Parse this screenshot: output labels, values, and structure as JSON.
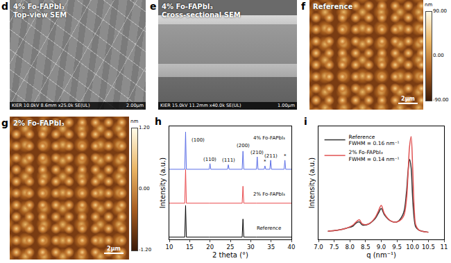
{
  "panels": [
    {
      "letter": "d",
      "type": "sem_top",
      "texts": [
        "4% Fo-FAPbI₃",
        "Top-view SEM"
      ],
      "footer": "KIER 10.0kV 8.6mm x25.0k SE(UL)",
      "scale": "2.00μm"
    },
    {
      "letter": "e",
      "type": "sem_cross",
      "texts": [
        "4% Fo-FAPbI₃",
        "Cross-sectional SEM"
      ],
      "footer": "KIER 15.0kV 11.2mm x40.0k SE(UL)",
      "scale": "1.00μm"
    },
    {
      "letter": "f",
      "type": "afm",
      "texts": [
        "Reference"
      ],
      "scale": "2μm",
      "colorbar": {
        "title": "nm",
        "range": [
          -90,
          90
        ],
        "ticks": [
          {
            "value": 90,
            "label": "90.00"
          },
          {
            "value": 0,
            "label": "0.00"
          },
          {
            "value": -90,
            "label": "-90.00"
          }
        ]
      }
    },
    {
      "letter": "g",
      "type": "afm",
      "texts": [
        "2% Fo-FAPbI₃"
      ],
      "scale": "2μm",
      "colorbar": {
        "title": "nm",
        "range": [
          -1.2,
          1.2
        ],
        "ticks": [
          {
            "value": 1.2,
            "label": "1.20"
          },
          {
            "value": 0,
            "label": "0.00"
          },
          {
            "value": -1.2,
            "label": "-1.20"
          }
        ]
      }
    }
  ],
  "chart_data": [
    {
      "letter": "h",
      "type": "line",
      "line_style": "solid",
      "x_label": "2 theta (°)",
      "y_label": "Intensity (a.u.)",
      "xlim": [
        10,
        40
      ],
      "xticks": [
        10,
        15,
        20,
        25,
        30,
        35,
        40
      ],
      "ylim": [
        0,
        100
      ],
      "tick_labels": "x",
      "grid": false,
      "x": [
        10,
        13.8,
        14.0,
        14.2,
        19.8,
        20.0,
        20.2,
        24.3,
        24.5,
        24.7,
        27.9,
        28.1,
        28.3,
        31.4,
        31.6,
        31.8,
        33.3,
        33.5,
        33.7,
        34.7,
        34.9,
        35.1,
        38.2,
        38.4,
        38.6,
        40
      ],
      "series": [
        {
          "name": "Reference",
          "color": "#000000",
          "values": [
            2,
            2,
            30,
            2,
            2,
            2,
            2,
            2,
            2,
            2,
            2,
            18,
            2,
            2,
            2,
            2,
            2,
            2,
            2,
            2,
            2,
            2,
            2,
            2,
            2,
            2
          ]
        },
        {
          "name": "2% Fo-FAPbI₃",
          "color": "#e8474a",
          "values": [
            32,
            32,
            62,
            32,
            32,
            32,
            32,
            32,
            32,
            32,
            32,
            47,
            32,
            32,
            32,
            32,
            32,
            32,
            32,
            32,
            32,
            32,
            32,
            32,
            32,
            32
          ]
        },
        {
          "name": "4% Fo-FAPbI₃",
          "color": "#5a6de6",
          "values": [
            62,
            62,
            95,
            62,
            62,
            67,
            62,
            62,
            66,
            62,
            62,
            78,
            62,
            62,
            73,
            62,
            62,
            65,
            62,
            62,
            70,
            62,
            62,
            70,
            62,
            62
          ]
        }
      ],
      "annotations": [
        {
          "text": "(100)",
          "x": 17,
          "y": 84
        },
        {
          "text": "(110)",
          "x": 20,
          "y": 67
        },
        {
          "text": "(111)",
          "x": 24.5,
          "y": 66
        },
        {
          "text": "(200)",
          "x": 28.1,
          "y": 79
        },
        {
          "text": "(210)",
          "x": 31.6,
          "y": 73
        },
        {
          "text": "*",
          "x": 33.5,
          "y": 65
        },
        {
          "text": "(211)",
          "x": 34.9,
          "y": 70
        },
        {
          "text": "*",
          "x": 38.4,
          "y": 70
        },
        {
          "text": "4% Fo-FAPbI₃",
          "x": 34.5,
          "y": 86
        },
        {
          "text": "2% Fo-FAPbI₃",
          "x": 34.5,
          "y": 36
        },
        {
          "text": "Reference",
          "x": 34.5,
          "y": 6
        }
      ]
    },
    {
      "letter": "i",
      "type": "line",
      "line_style": "smooth",
      "x_label": "q (nm⁻¹)",
      "y_label": "Intensity (a.u.)",
      "xlim": [
        7,
        11
      ],
      "xticks": [
        {
          "value": 7,
          "label": "7.0"
        },
        {
          "value": 7.5,
          "label": "7.5"
        },
        {
          "value": 8,
          "label": "8.0"
        },
        {
          "value": 8.5,
          "label": "8.5"
        },
        {
          "value": 9,
          "label": "9.0"
        },
        {
          "value": 9.5,
          "label": "9.5"
        },
        {
          "value": 10,
          "label": "10.0"
        },
        10.5,
        11
      ],
      "ylim": [
        0,
        1.1
      ],
      "tick_labels": "x",
      "grid": false,
      "legend": "top left",
      "x": [
        7.3,
        7.6,
        7.9,
        8.1,
        8.2,
        8.3,
        8.4,
        8.6,
        8.8,
        8.9,
        9.0,
        9.1,
        9.3,
        9.5,
        9.7,
        9.8,
        9.85,
        9.9,
        9.95,
        10.0,
        10.05,
        10.1,
        10.2,
        10.3,
        10.5
      ],
      "series": [
        {
          "name": "Reference",
          "legend_note": "FWHM = 0.16 nm⁻¹",
          "color": "#333333",
          "values": [
            0.08,
            0.09,
            0.11,
            0.13,
            0.16,
            0.17,
            0.14,
            0.15,
            0.2,
            0.25,
            0.3,
            0.24,
            0.18,
            0.17,
            0.25,
            0.45,
            0.65,
            0.78,
            0.7,
            0.4,
            0.2,
            0.12,
            0.09,
            0.08,
            0.07
          ]
        },
        {
          "name": "2% Fo-FAPbI₃",
          "legend_note": "FWHM = 0.14 nm⁻¹",
          "color": "#e05252",
          "values": [
            0.08,
            0.09,
            0.11,
            0.14,
            0.17,
            0.19,
            0.15,
            0.15,
            0.21,
            0.27,
            0.33,
            0.25,
            0.18,
            0.17,
            0.22,
            0.38,
            0.62,
            0.9,
            1.0,
            0.7,
            0.3,
            0.14,
            0.09,
            0.08,
            0.07
          ]
        }
      ]
    }
  ]
}
